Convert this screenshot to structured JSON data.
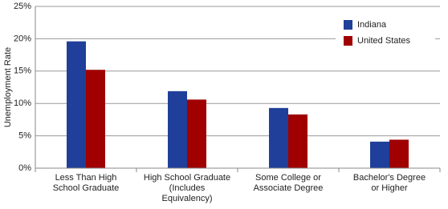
{
  "chart_data": {
    "type": "bar",
    "y_label": "Unemployment Rate",
    "categories": [
      "Less Than High\nSchool Graduate",
      "High School Graduate\n(Includes\nEquivalency)",
      "Some College or\nAssociate Degree",
      "Bachelor's Degree\nor Higher"
    ],
    "series": [
      {
        "name": "Indiana",
        "color": "#1f3f9a",
        "values": [
          19.6,
          11.9,
          9.3,
          4.1
        ]
      },
      {
        "name": "United States",
        "color": "#a00000",
        "values": [
          15.2,
          10.6,
          8.3,
          4.4
        ]
      }
    ],
    "ylim": [
      0,
      25
    ],
    "yticks": [
      {
        "value": 0,
        "label": "0%"
      },
      {
        "value": 5,
        "label": "5%"
      },
      {
        "value": 10,
        "label": "10%"
      },
      {
        "value": 15,
        "label": "15%"
      },
      {
        "value": 20,
        "label": "20%"
      },
      {
        "value": 25,
        "label": "25%"
      }
    ],
    "grid": true,
    "legend": "top-right"
  }
}
